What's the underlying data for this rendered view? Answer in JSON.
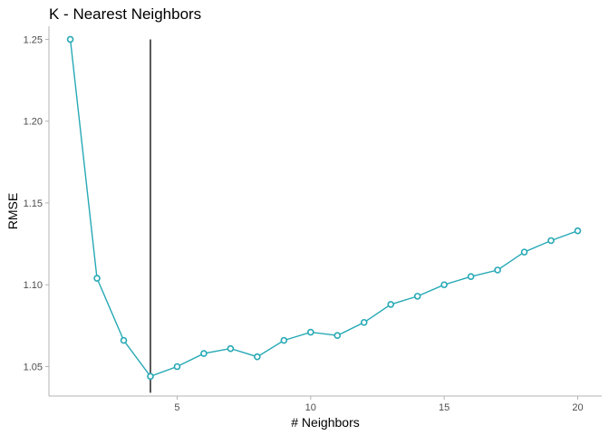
{
  "chart_data": {
    "type": "line",
    "title": "K - Nearest Neighbors",
    "xlabel": "# Neighbors",
    "ylabel": "RMSE",
    "xlim": [
      0.2,
      20.9
    ],
    "ylim": [
      1.032,
      1.258
    ],
    "xticks": [
      5,
      10,
      15,
      20
    ],
    "yticks": [
      1.05,
      1.1,
      1.15,
      1.2,
      1.25
    ],
    "xtick_labels": [
      "5",
      "10",
      "15",
      "20"
    ],
    "ytick_labels": [
      "1.05",
      "1.10",
      "1.15",
      "1.20",
      "1.25"
    ],
    "grid": false,
    "series": [
      {
        "color": "#26a9b5",
        "x": [
          1,
          2,
          3,
          4,
          5,
          6,
          7,
          8,
          9,
          10,
          11,
          12,
          13,
          14,
          15,
          16,
          17,
          18,
          19,
          20
        ],
        "values": [
          1.25,
          1.104,
          1.066,
          1.044,
          1.05,
          1.058,
          1.061,
          1.056,
          1.066,
          1.071,
          1.069,
          1.077,
          1.088,
          1.093,
          1.1,
          1.105,
          1.109,
          1.12,
          1.127,
          1.133
        ]
      }
    ],
    "vline": {
      "x": 4,
      "y_from": 1.034,
      "y_to": 1.25,
      "color": "#000000"
    }
  }
}
